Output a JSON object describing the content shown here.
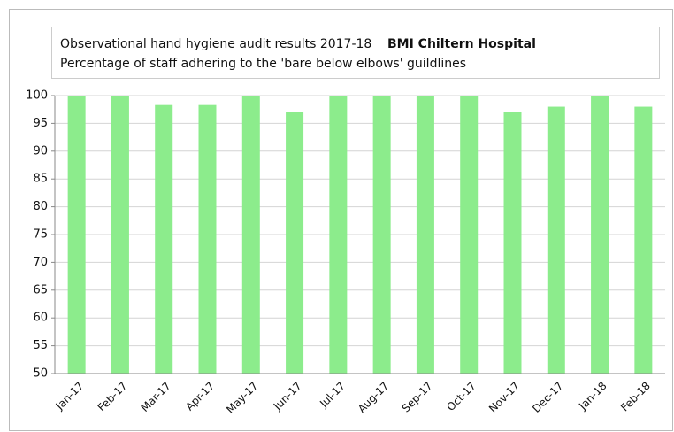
{
  "chart_data": {
    "type": "bar",
    "title": "Observational hand hygiene audit results 2017-18",
    "title_bold": "BMI Chiltern Hospital",
    "subtitle": "Percentage of staff  adhering to the 'bare below elbows' guildlines",
    "categories": [
      "Jan-17",
      "Feb-17",
      "Mar-17",
      "Apr-17",
      "May-17",
      "Jun-17",
      "Jul-17",
      "Aug-17",
      "Sep-17",
      "Oct-17",
      "Nov-17",
      "Dec-17",
      "Jan-18",
      "Feb-18"
    ],
    "values": [
      100,
      100,
      98.3,
      98.3,
      100,
      97,
      100,
      100,
      100,
      100,
      97,
      98,
      100,
      98
    ],
    "color": "#8cec8c",
    "ylim": [
      50,
      100
    ],
    "yticks": [
      50,
      55,
      60,
      65,
      70,
      75,
      80,
      85,
      90,
      95,
      100
    ],
    "grid": true
  }
}
